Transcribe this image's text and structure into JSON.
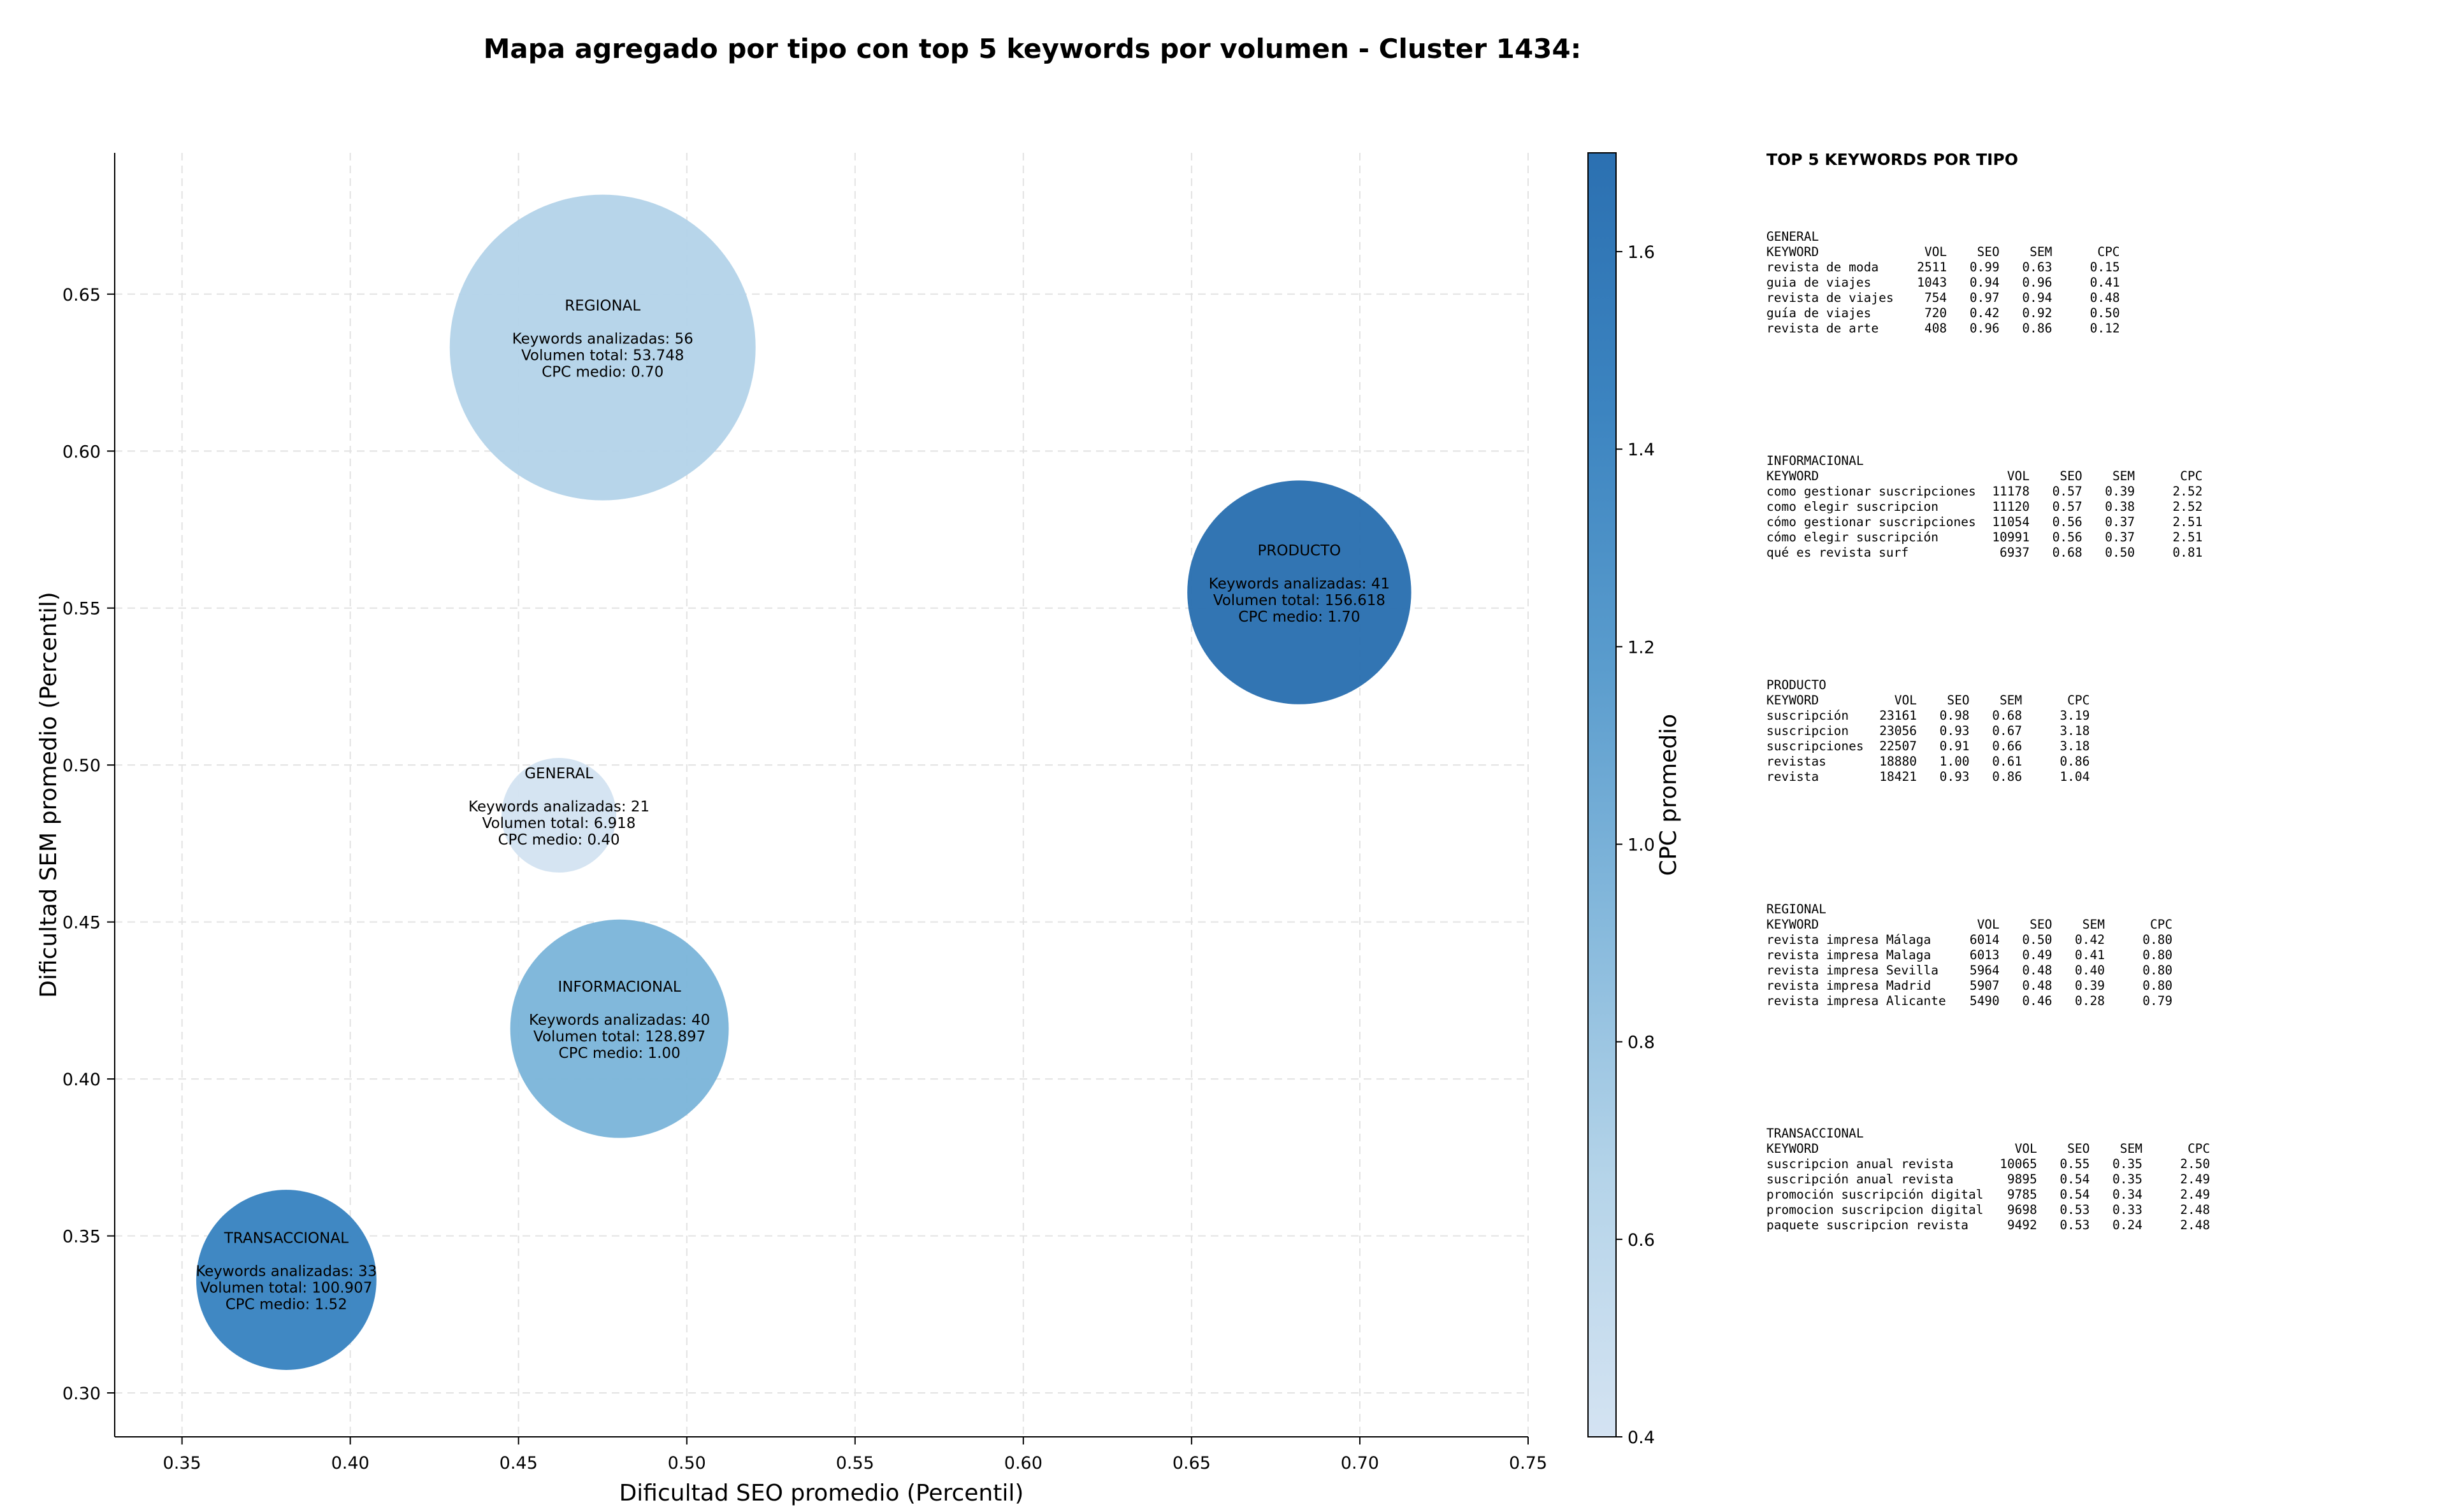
{
  "chart_data": {
    "type": "scatter",
    "title": "Mapa agregado por tipo con top 5 keywords por volumen - Cluster 1434:",
    "xlabel": "Dificultad SEO promedio (Percentil)",
    "ylabel": "Dificultad SEM promedio (Percentil)",
    "xlim": [
      0.33,
      0.75
    ],
    "ylim": [
      0.286,
      0.695
    ],
    "xticks": [
      "0.35",
      "0.40",
      "0.45",
      "0.50",
      "0.55",
      "0.60",
      "0.65",
      "0.70",
      "0.75"
    ],
    "yticks": [
      "0.30",
      "0.35",
      "0.40",
      "0.45",
      "0.50",
      "0.55",
      "0.60",
      "0.65"
    ],
    "grid": true,
    "colorbar": {
      "label": "CPC promedio",
      "min": 0.4,
      "max": 1.7,
      "ticks": [
        "0.4",
        "0.6",
        "0.8",
        "1.0",
        "1.2",
        "1.4",
        "1.6"
      ],
      "colormap": [
        "#d4e3f2",
        "#b5d4e9",
        "#86b9dc",
        "#5a9ccd",
        "#3c84c0",
        "#2b70b1"
      ]
    },
    "points": [
      {
        "type": "REGIONAL",
        "x": 0.475,
        "y": 0.633,
        "keywords_label": "Keywords analizadas: 56",
        "volume_label": "Volumen total: 53.748",
        "cpc_label": "CPC medio: 0.70",
        "keywords": 56,
        "cpc": 0.7,
        "color": "#b5d4e9"
      },
      {
        "type": "PRODUCTO",
        "x": 0.682,
        "y": 0.555,
        "keywords_label": "Keywords analizadas: 41",
        "volume_label": "Volumen total: 156.618",
        "cpc_label": "CPC medio: 1.70",
        "keywords": 41,
        "cpc": 1.7,
        "color": "#2b71b1"
      },
      {
        "type": "GENERAL",
        "x": 0.462,
        "y": 0.484,
        "keywords_label": "Keywords analizadas: 21",
        "volume_label": "Volumen total: 6.918",
        "cpc_label": "CPC medio: 0.40",
        "keywords": 21,
        "cpc": 0.4,
        "color": "#d4e3f2"
      },
      {
        "type": "INFORMACIONAL",
        "x": 0.48,
        "y": 0.416,
        "keywords_label": "Keywords analizadas: 40",
        "volume_label": "Volumen total: 128.897",
        "cpc_label": "CPC medio: 1.00",
        "keywords": 40,
        "cpc": 1.0,
        "color": "#7db6da"
      },
      {
        "type": "TRANSACCIONAL",
        "x": 0.381,
        "y": 0.336,
        "keywords_label": "Keywords analizadas: 33",
        "volume_label": "Volumen total: 100.907",
        "cpc_label": "CPC medio: 1.52",
        "keywords": 33,
        "cpc": 1.52,
        "color": "#3a84c1"
      }
    ]
  },
  "keywords_panel": {
    "title": "TOP 5 KEYWORDS POR TIPO",
    "header": [
      "KEYWORD",
      "VOL",
      "SEO",
      "SEM",
      "CPC"
    ],
    "groups": [
      {
        "type": "GENERAL",
        "rows": [
          [
            "revista de moda",
            "2511",
            "0.99",
            "0.63",
            "0.15"
          ],
          [
            "guia de viajes",
            "1043",
            "0.94",
            "0.96",
            "0.41"
          ],
          [
            "revista de viajes",
            "754",
            "0.97",
            "0.94",
            "0.48"
          ],
          [
            "guía de viajes",
            "720",
            "0.42",
            "0.92",
            "0.50"
          ],
          [
            "revista de arte",
            "408",
            "0.96",
            "0.86",
            "0.12"
          ]
        ]
      },
      {
        "type": "INFORMACIONAL",
        "rows": [
          [
            "como gestionar suscripciones",
            "11178",
            "0.57",
            "0.39",
            "2.52"
          ],
          [
            "como elegir suscripcion",
            "11120",
            "0.57",
            "0.38",
            "2.52"
          ],
          [
            "cómo gestionar suscripciones",
            "11054",
            "0.56",
            "0.37",
            "2.51"
          ],
          [
            "cómo elegir suscripción",
            "10991",
            "0.56",
            "0.37",
            "2.51"
          ],
          [
            "qué es revista surf",
            "6937",
            "0.68",
            "0.50",
            "0.81"
          ]
        ]
      },
      {
        "type": "PRODUCTO",
        "rows": [
          [
            "suscripción",
            "23161",
            "0.98",
            "0.68",
            "3.19"
          ],
          [
            "suscripcion",
            "23056",
            "0.93",
            "0.67",
            "3.18"
          ],
          [
            "suscripciones",
            "22507",
            "0.91",
            "0.66",
            "3.18"
          ],
          [
            "revistas",
            "18880",
            "1.00",
            "0.61",
            "0.86"
          ],
          [
            "revista",
            "18421",
            "0.93",
            "0.86",
            "1.04"
          ]
        ]
      },
      {
        "type": "REGIONAL",
        "rows": [
          [
            "revista impresa Málaga",
            "6014",
            "0.50",
            "0.42",
            "0.80"
          ],
          [
            "revista impresa Malaga",
            "6013",
            "0.49",
            "0.41",
            "0.80"
          ],
          [
            "revista impresa Sevilla",
            "5964",
            "0.48",
            "0.40",
            "0.80"
          ],
          [
            "revista impresa Madrid",
            "5907",
            "0.48",
            "0.39",
            "0.80"
          ],
          [
            "revista impresa Alicante",
            "5490",
            "0.46",
            "0.28",
            "0.79"
          ]
        ]
      },
      {
        "type": "TRANSACCIONAL",
        "rows": [
          [
            "suscripcion anual revista",
            "10065",
            "0.55",
            "0.35",
            "2.50"
          ],
          [
            "suscripción anual revista",
            "9895",
            "0.54",
            "0.35",
            "2.49"
          ],
          [
            "promoción suscripción digital",
            "9785",
            "0.54",
            "0.34",
            "2.49"
          ],
          [
            "promocion suscripcion digital",
            "9698",
            "0.53",
            "0.33",
            "2.48"
          ],
          [
            "paquete suscripcion revista",
            "9492",
            "0.53",
            "0.24",
            "2.48"
          ]
        ]
      }
    ]
  }
}
